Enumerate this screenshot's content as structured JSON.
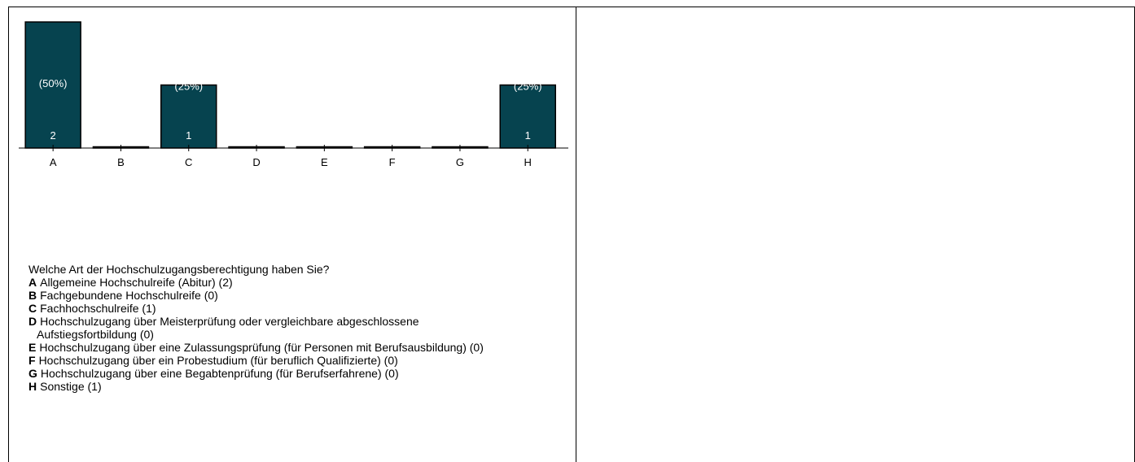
{
  "chart_data": {
    "type": "bar",
    "categories": [
      "A",
      "B",
      "C",
      "D",
      "E",
      "F",
      "G",
      "H"
    ],
    "values": [
      2,
      0,
      1,
      0,
      0,
      0,
      0,
      1
    ],
    "percent_labels": [
      "(50%)",
      "",
      "(25%)",
      "",
      "",
      "",
      "",
      "(25%)"
    ],
    "count_labels": [
      "2",
      "",
      "1",
      "",
      "",
      "",
      "",
      "1"
    ],
    "ylim": [
      0,
      2
    ],
    "bar_color": "#06434f",
    "grid": false,
    "legend": "below"
  },
  "legend": {
    "question": "Welche Art der Hochschulzugangsberechtigung haben Sie?",
    "options": [
      {
        "letter": "A",
        "text": "Allgemeine Hochschulreife (Abitur) (2)"
      },
      {
        "letter": "B",
        "text": "Fachgebundene Hochschulreife (0)"
      },
      {
        "letter": "C",
        "text": "Fachhochschulreife (1)"
      },
      {
        "letter": "D",
        "text": "Hochschulzugang über Meisterprüfung oder vergleichbare abgeschlossene Aufstiegsfortbildung (0)"
      },
      {
        "letter": "E",
        "text": "Hochschulzugang über eine Zulassungsprüfung (für Personen mit Berufsausbildung) (0)"
      },
      {
        "letter": "F",
        "text": "Hochschulzugang über ein Probestudium (für beruflich Qualifizierte) (0)"
      },
      {
        "letter": "G",
        "text": "Hochschulzugang über eine Begabtenprüfung (für Berufserfahrene) (0)"
      },
      {
        "letter": "H",
        "text": "Sonstige (1)"
      }
    ]
  }
}
